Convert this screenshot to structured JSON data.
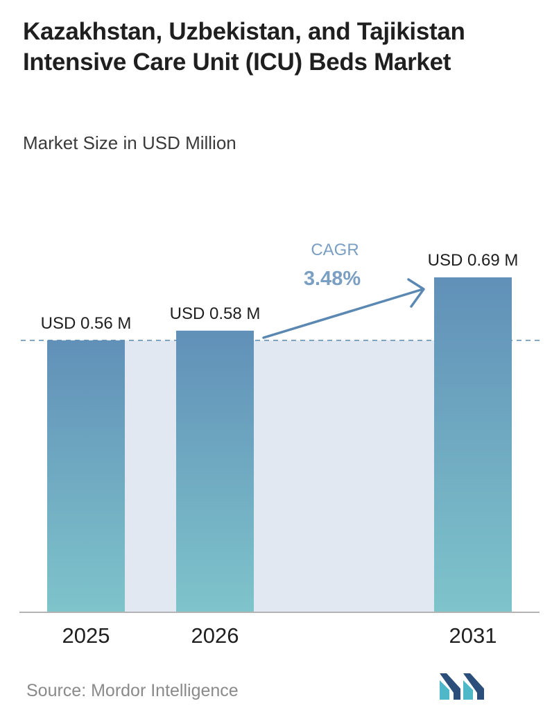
{
  "title": "Kazakhstan, Uzbekistan, and Tajikistan Intensive Care Unit (ICU) Beds Market",
  "subtitle": "Market Size in USD Million",
  "source": "Source: Mordor Intelligence",
  "logo_icon": "mordor-intelligence-logo-icon",
  "colors": {
    "bar_top": "#6190b8",
    "bar_bottom": "#7ec4cb",
    "band": "#e1e8f1",
    "arrow": "#5b88b2",
    "cagr_label": "#7a9fc3",
    "reference_line": "#6a93b6",
    "logo_dark": "#2b4f7a",
    "logo_light": "#4fb8c8"
  },
  "chart_data": {
    "type": "bar",
    "categories": [
      "2025",
      "2026",
      "2031"
    ],
    "values": [
      0.56,
      0.58,
      0.69
    ],
    "data_labels": [
      "USD 0.56 M",
      "USD 0.58 M",
      "USD 0.69 M"
    ],
    "unit": "USD Million",
    "ylim": [
      0,
      0.69
    ],
    "grid": false,
    "legend": "none",
    "reference_line": {
      "value": 0.56,
      "style": "dashed"
    },
    "cagr": {
      "label": "CAGR",
      "value": "3.48%",
      "from": "2026",
      "to": "2031"
    }
  }
}
